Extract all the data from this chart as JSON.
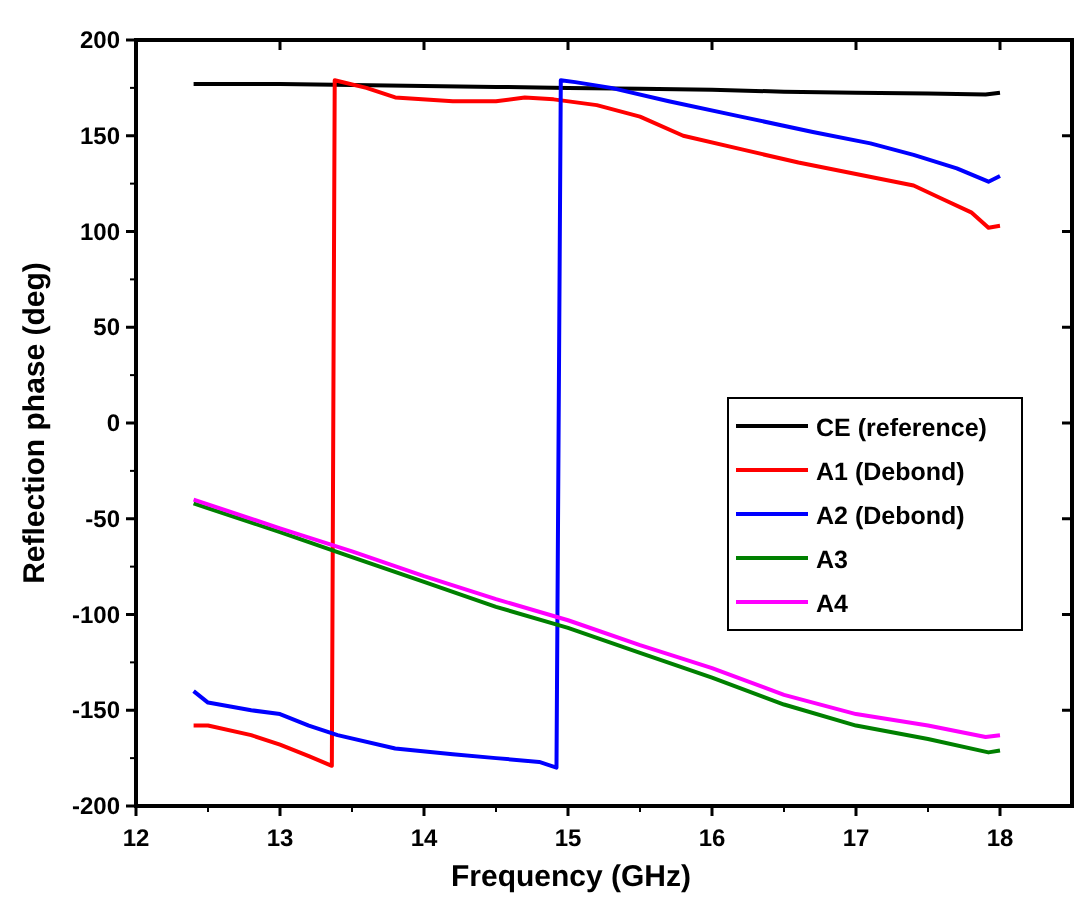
{
  "chart_data": {
    "type": "line",
    "xlabel": "Frequency (GHz)",
    "ylabel": "Reflection phase (deg)",
    "xlim": [
      12,
      18.5
    ],
    "xticks": [
      12,
      13,
      14,
      15,
      16,
      17,
      18
    ],
    "ylim": [
      -200,
      200
    ],
    "yticks": [
      -200,
      -150,
      -100,
      -50,
      0,
      50,
      100,
      150,
      200
    ],
    "grid": false,
    "legend": "right",
    "line_style": "solid",
    "marker": "none",
    "series": [
      {
        "name": "CE (reference)",
        "color": "#000000",
        "x": [
          12.4,
          13,
          13.5,
          14,
          14.5,
          15,
          15.5,
          16,
          16.5,
          17,
          17.5,
          17.9,
          18
        ],
        "values": [
          177,
          177,
          176.5,
          176,
          175.5,
          175,
          174.5,
          174,
          173,
          172.5,
          172,
          171.5,
          172.5
        ]
      },
      {
        "name": "A1 (Debond)",
        "color": "#ff0000",
        "x": [
          12.4,
          12.5,
          12.8,
          13,
          13.2,
          13.36,
          13.38,
          13.6,
          13.8,
          14.2,
          14.5,
          14.7,
          14.9,
          15.2,
          15.5,
          15.8,
          16.2,
          16.6,
          17,
          17.4,
          17.6,
          17.8,
          17.92,
          18
        ],
        "values": [
          -158,
          -158,
          -163,
          -168,
          -174,
          -179,
          179,
          175,
          170,
          168,
          168,
          170,
          169,
          166,
          160,
          150,
          143,
          136,
          130,
          124,
          117,
          110,
          102,
          103
        ]
      },
      {
        "name": "A2 (Debond)",
        "color": "#0000ff",
        "x": [
          12.4,
          12.5,
          12.8,
          13,
          13.2,
          13.4,
          13.8,
          14.2,
          14.5,
          14.8,
          14.92,
          14.95,
          15.05,
          15.3,
          15.7,
          16.2,
          16.7,
          17.1,
          17.4,
          17.7,
          17.92,
          18
        ],
        "values": [
          -140,
          -146,
          -150,
          -152,
          -158,
          -163,
          -170,
          -173,
          -175,
          -177,
          -180,
          179,
          178,
          175,
          168,
          160,
          152,
          146,
          140,
          133,
          126,
          129
        ]
      },
      {
        "name": "A3",
        "color": "#008000",
        "x": [
          12.4,
          13,
          13.5,
          14,
          14.5,
          15,
          15.5,
          16,
          16.5,
          17,
          17.5,
          17.92,
          18
        ],
        "values": [
          -42,
          -57,
          -70,
          -83,
          -96,
          -107,
          -120,
          -133,
          -147,
          -158,
          -165,
          -172,
          -171
        ]
      },
      {
        "name": "A4",
        "color": "#ff00ff",
        "x": [
          12.4,
          13,
          13.5,
          14,
          14.5,
          15,
          15.5,
          16,
          16.5,
          17,
          17.5,
          17.9,
          18
        ],
        "values": [
          -40,
          -55,
          -67,
          -80,
          -92,
          -103,
          -116,
          -128,
          -142,
          -152,
          -158,
          -164,
          -163
        ]
      }
    ]
  }
}
